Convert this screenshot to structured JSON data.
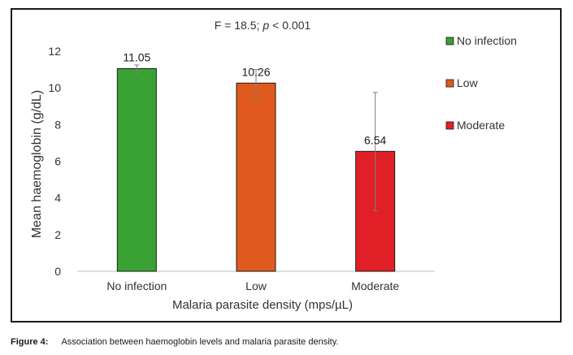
{
  "chart_data": {
    "type": "bar",
    "title_prefix": "F = 18.5",
    "title_sep": ";",
    "title_italic": "p",
    "title_suffix": "< 0.001",
    "xlabel": "Malaria parasite density (mps/µL)",
    "ylabel": "Mean haemoglobin (g/dL)",
    "ylim": [
      0,
      12
    ],
    "yticks": [
      0,
      2,
      4,
      6,
      8,
      10,
      12
    ],
    "categories": [
      "No infection",
      "Low",
      "Moderate"
    ],
    "values": [
      11.05,
      10.26,
      6.54
    ],
    "value_labels": [
      "11.05",
      "10.26",
      "6.54"
    ],
    "error_low": [
      10.8,
      9.5,
      3.3
    ],
    "error_high": [
      11.25,
      11.0,
      9.75
    ],
    "colors": [
      "#3aa235",
      "#e05a1e",
      "#e01f26"
    ],
    "legend": [
      {
        "label": "No infection",
        "color": "#3aa235"
      },
      {
        "label": "Low",
        "color": "#e05a1e"
      },
      {
        "label": "Moderate",
        "color": "#e01f26"
      }
    ],
    "legend_position": "right"
  },
  "caption": {
    "label": "Figure 4:",
    "text": "Association between haemoglobin levels and malaria parasite density."
  }
}
